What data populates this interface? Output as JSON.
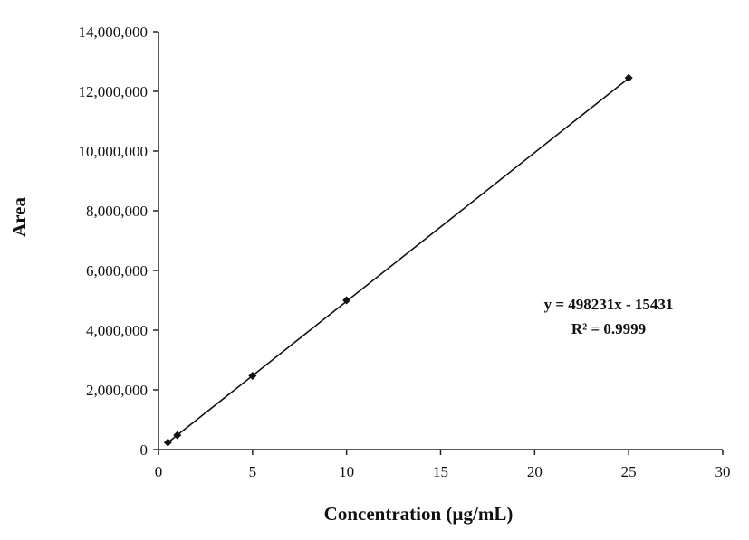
{
  "chart_data": {
    "type": "scatter",
    "xlabel": "Concentration (µg/mL)",
    "ylabel": "Area",
    "xlim": [
      0,
      30
    ],
    "ylim": [
      0,
      14000000
    ],
    "x_ticks": [
      0,
      5,
      10,
      15,
      20,
      25,
      30
    ],
    "x_tick_labels": [
      "0",
      "5",
      "10",
      "15",
      "20",
      "25",
      "30"
    ],
    "y_ticks": [
      0,
      2000000,
      4000000,
      6000000,
      8000000,
      10000000,
      12000000,
      14000000
    ],
    "y_tick_labels": [
      "0",
      "2,000,000",
      "4,000,000",
      "6,000,000",
      "8,000,000",
      "10,000,000",
      "12,000,000",
      "14,000,000"
    ],
    "grid": false,
    "legend": "none",
    "series": [
      {
        "x": [
          0.5,
          1,
          5,
          10,
          25
        ],
        "y": [
          240000,
          480000,
          2470000,
          5000000,
          12450000
        ]
      }
    ],
    "trendline": {
      "slope": 498231,
      "intercept": -15431,
      "x_range": [
        0.5,
        25
      ]
    },
    "annotations": {
      "equation": "y = 498231x - 15431",
      "r_squared": "R² = 0.9999"
    },
    "colors": {
      "marker": "#111111",
      "line": "#111111",
      "axis": "#222222"
    }
  }
}
